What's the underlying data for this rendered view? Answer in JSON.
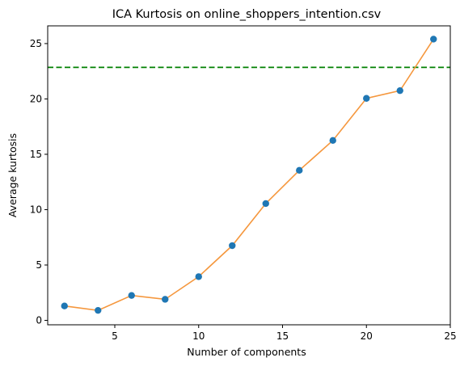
{
  "chart_data": {
    "type": "line",
    "title": "ICA Kurtosis on online_shoppers_intention.csv",
    "xlabel": "Number of components",
    "ylabel": "Average kurtosis",
    "xlim": [
      1.0,
      25.0
    ],
    "ylim": [
      -0.4,
      26.6
    ],
    "xticks": [
      5,
      10,
      15,
      20,
      25
    ],
    "yticks": [
      0,
      5,
      10,
      15,
      20,
      25
    ],
    "grid": false,
    "series": [
      {
        "x": [
          2,
          4,
          6,
          8,
          10,
          12,
          14,
          16,
          18,
          20,
          22,
          24
        ],
        "y": [
          1.3,
          0.9,
          2.25,
          1.9,
          3.95,
          6.75,
          10.55,
          13.55,
          16.25,
          20.05,
          20.75,
          25.4
        ],
        "line_color": "#f5973d",
        "marker_color": "#1f77b4"
      }
    ],
    "reference_line": {
      "y": 22.85,
      "color": "#008000",
      "style": "dashed"
    }
  }
}
